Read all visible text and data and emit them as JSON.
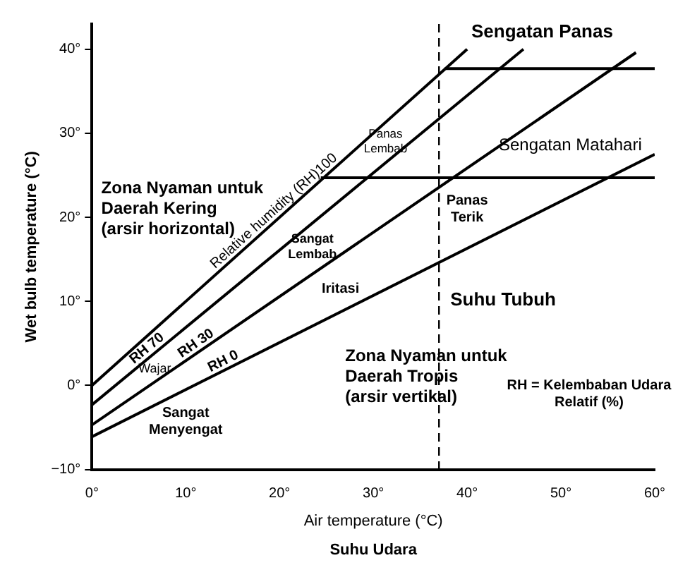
{
  "chart_data": {
    "type": "line",
    "xlabel": "Air temperature (°C)",
    "ylabel": "Wet bulb temperature (°C)",
    "xlim": [
      0,
      60
    ],
    "ylim": [
      -10,
      43
    ],
    "xticks": [
      {
        "value": 0,
        "label": "0°"
      },
      {
        "value": 10,
        "label": "10°"
      },
      {
        "value": 20,
        "label": "20°"
      },
      {
        "value": 30,
        "label": "30°"
      },
      {
        "value": 40,
        "label": "40°"
      },
      {
        "value": 50,
        "label": "50°"
      },
      {
        "value": 60,
        "label": "60°"
      }
    ],
    "yticks": [
      {
        "value": -10,
        "label": "−10°"
      },
      {
        "value": 0,
        "label": "0°"
      },
      {
        "value": 10,
        "label": "10°"
      },
      {
        "value": 20,
        "label": "20°"
      },
      {
        "value": 30,
        "label": "30°"
      },
      {
        "value": 40,
        "label": "40°"
      }
    ],
    "grid": false,
    "legend": false,
    "marker": "none",
    "line_style": "solid",
    "series": [
      {
        "name": "Relative humidity (RH)100",
        "color": "#000000",
        "x": [
          0,
          40
        ],
        "values": [
          0,
          40
        ]
      },
      {
        "name": "RH 70",
        "color": "#000000",
        "x": [
          0,
          46
        ],
        "values": [
          -2.3,
          40
        ]
      },
      {
        "name": "RH 30",
        "color": "#000000",
        "x": [
          0,
          58
        ],
        "values": [
          -4.7,
          39.6
        ]
      },
      {
        "name": "RH 0",
        "color": "#000000",
        "x": [
          0,
          60
        ],
        "values": [
          -6.1,
          27.5
        ]
      },
      {
        "color": "#000000",
        "x": [
          37.6,
          60
        ],
        "values": [
          37.7,
          37.7
        ]
      },
      {
        "color": "#000000",
        "x": [
          24.4,
          60
        ],
        "values": [
          24.7,
          24.7
        ]
      }
    ],
    "ref_lines": [
      {
        "axis": "x",
        "value": 37,
        "label": "Suhu Tubuh",
        "line_style": "dashed",
        "color": "#000000"
      }
    ],
    "annotations": [
      "Sengatan Panas",
      "Sengatan Matahari",
      "Panas\nLembab",
      "Panas\nTerik",
      "Sangat\nLembab",
      "Iritasi",
      "Wajar",
      "Sangat\nMenyengat",
      "Zona Nyaman untuk\nDaerah Kering\n(arsir horizontal)",
      "Zona Nyaman untuk\nDaerah Tropis\n(arsir vertikal)",
      "RH = Kelembaban Udara\nRelatif (%)",
      "Suhu Udara"
    ]
  }
}
